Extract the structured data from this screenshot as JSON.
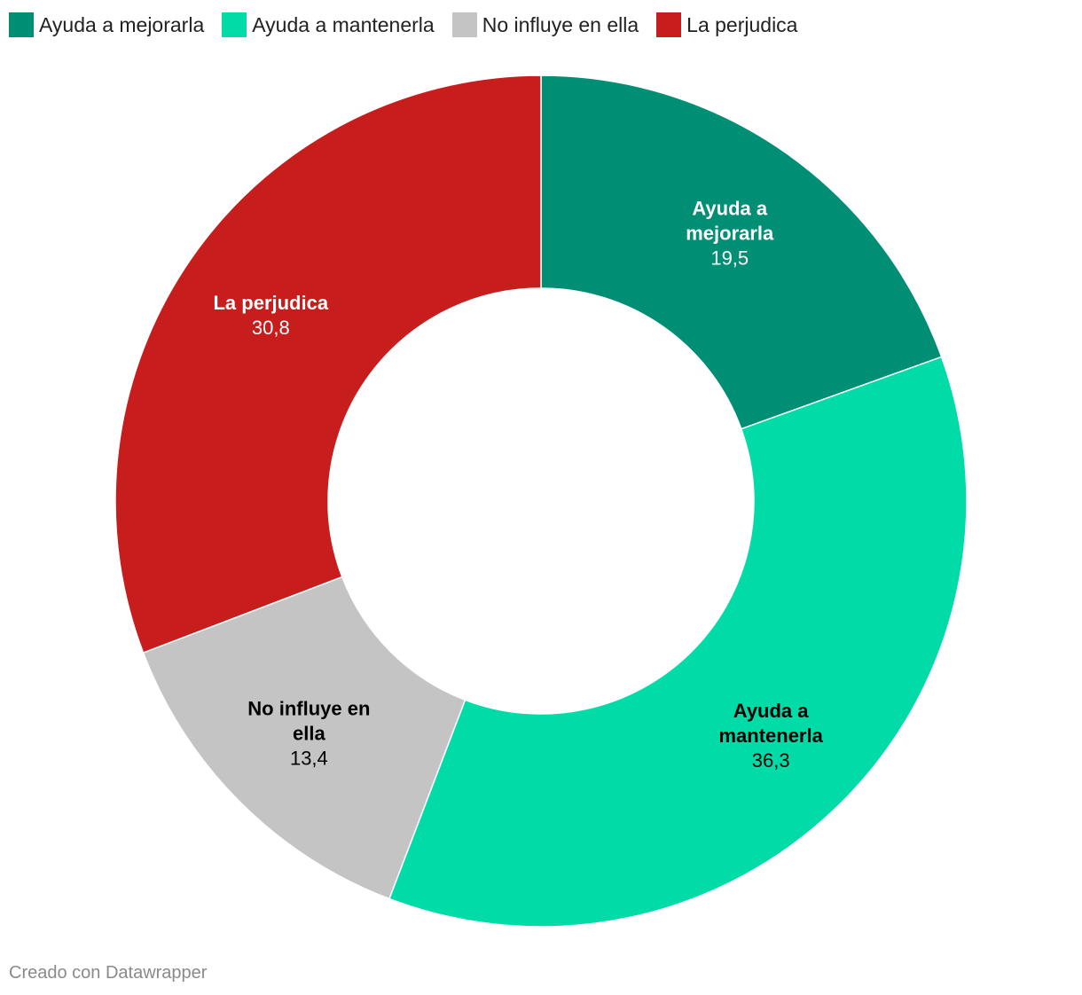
{
  "chart_data": {
    "type": "pie",
    "variant": "donut",
    "unit": "",
    "legend_position": "top-left",
    "slices": [
      {
        "label": "Ayuda a mejorarla",
        "label_lines": [
          "Ayuda a",
          "mejorarla"
        ],
        "value": 19.5,
        "value_text": "19,5",
        "color": "#008e74",
        "text_color": "#ffffff"
      },
      {
        "label": "Ayuda a mantenerla",
        "label_lines": [
          "Ayuda a",
          "mantenerla"
        ],
        "value": 36.3,
        "value_text": "36,3",
        "color": "#00dba8",
        "text_color": "#000000"
      },
      {
        "label": "No influye en ella",
        "label_lines": [
          "No influye en",
          "ella"
        ],
        "value": 13.4,
        "value_text": "13,4",
        "color": "#c4c4c4",
        "text_color": "#000000"
      },
      {
        "label": "La perjudica",
        "label_lines": [
          "La perjudica"
        ],
        "value": 30.8,
        "value_text": "30,8",
        "color": "#c71e1d",
        "text_color": "#ffffff"
      }
    ]
  },
  "footer": {
    "credit": "Creado con Datawrapper"
  }
}
